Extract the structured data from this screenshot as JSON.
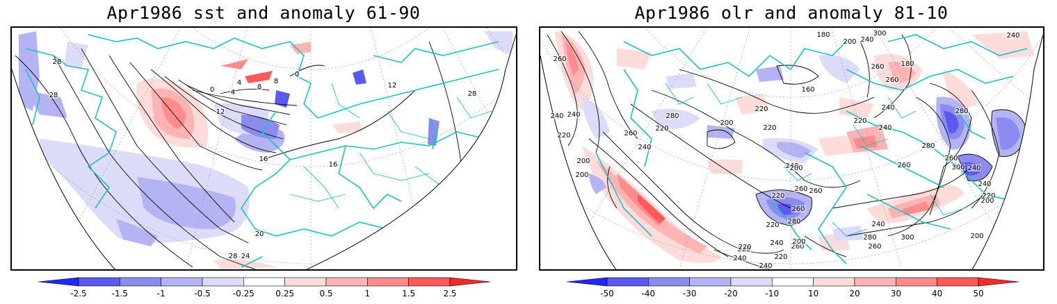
{
  "panels": [
    {
      "title": "Apr1986 sst and anomaly 61-90",
      "variable": "sst",
      "colorbar": {
        "levels": [
          "-2.5",
          "-1.5",
          "-1",
          "-0.5",
          "-0.25",
          "0.25",
          "0.5",
          "1",
          "1.5",
          "2.5"
        ],
        "colors": [
          "#1e28ff",
          "#5a5af0",
          "#8c8cf0",
          "#b4b4f5",
          "#dcdcfa",
          "#ffffff",
          "#ffdcdc",
          "#ffb4b4",
          "#ff8c8c",
          "#ff5a5a",
          "#ff2828"
        ]
      },
      "contour_labels": [
        "28",
        "28",
        "0",
        "4",
        "8",
        "12",
        "16",
        "20",
        "24",
        "28",
        "12",
        "28",
        "16",
        "0",
        "4",
        "8"
      ]
    },
    {
      "title": "Apr1986 olr and anomaly 81-10",
      "variable": "olr",
      "colorbar": {
        "levels": [
          "-50",
          "-40",
          "-30",
          "-20",
          "-10",
          "10",
          "20",
          "30",
          "40",
          "50"
        ],
        "colors": [
          "#1e28ff",
          "#5a5af0",
          "#8c8cf0",
          "#b4b4f5",
          "#dcdcfa",
          "#ffffff",
          "#ffdcdc",
          "#ffb4b4",
          "#ff8c8c",
          "#ff5a5a",
          "#ff2828"
        ]
      },
      "contour_labels": [
        "260",
        "240",
        "240",
        "280",
        "220",
        "260",
        "200",
        "220",
        "240",
        "200",
        "160",
        "180",
        "220",
        "200",
        "220",
        "240",
        "260",
        "220",
        "200",
        "260",
        "240",
        "280",
        "260",
        "240",
        "220",
        "260",
        "300",
        "280",
        "240",
        "240",
        "220",
        "200",
        "200",
        "240",
        "260",
        "280",
        "300",
        "260",
        "240",
        "220",
        "220",
        "240",
        "200",
        "260",
        "260",
        "280",
        "220",
        "240",
        "220",
        "200",
        "300",
        "260",
        "240",
        "180",
        "240"
      ]
    }
  ],
  "colors": {
    "coastline": "#19c3c3",
    "contour": "#000000",
    "grid": "#9a9a9a",
    "frame": "#000000"
  }
}
